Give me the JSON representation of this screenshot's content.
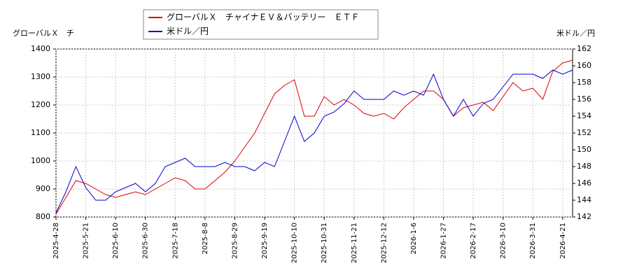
{
  "chart_data": {
    "type": "line",
    "y_label": "グローバルＸ　チ",
    "y2_label": "米ドル／円",
    "categories": [
      "2025-4-28",
      null,
      null,
      "2025-5-21",
      null,
      null,
      "2025-6-10",
      null,
      null,
      "2025-6-30",
      null,
      null,
      "2025-7-18",
      null,
      null,
      "2025-8-8",
      null,
      null,
      "2025-8-29",
      null,
      null,
      "2025-9-19",
      null,
      null,
      "2025-10-10",
      null,
      null,
      "2025-10-31",
      null,
      null,
      "2025-11-21",
      null,
      null,
      "2025-12-12",
      null,
      null,
      "2026-1-6",
      null,
      null,
      "2026-1-27",
      null,
      null,
      "2026-2-17",
      null,
      null,
      "2026-3-10",
      null,
      null,
      "2026-3-31",
      null,
      null,
      "2026-4-21",
      null
    ],
    "series": [
      {
        "name": "グローバルＸ　チャイナＥＶ＆バッテリー　ＥＴＦ",
        "color": "#dd0000",
        "values": [
          810,
          870,
          930,
          920,
          900,
          880,
          870,
          880,
          890,
          880,
          900,
          920,
          940,
          930,
          900,
          900,
          930,
          960,
          1000,
          1050,
          1100,
          1170,
          1240,
          1270,
          1290,
          1160,
          1160,
          1230,
          1200,
          1220,
          1200,
          1170,
          1160,
          1170,
          1150,
          1190,
          1220,
          1250,
          1250,
          1220,
          1160,
          1190,
          1200,
          1210,
          1180,
          1230,
          1280,
          1250,
          1260,
          1220,
          1320,
          1350,
          1360
        ]
      },
      {
        "name": "米ドル／円",
        "color": "#0000cc",
        "axis": "y2",
        "values": [
          142.5,
          145,
          148,
          145.5,
          144,
          144,
          145,
          145.5,
          146,
          145,
          146,
          148,
          148.5,
          149,
          148,
          148,
          148,
          148.5,
          148,
          148,
          147.5,
          148.5,
          148,
          151,
          154,
          151,
          152,
          154,
          154.5,
          155.5,
          157,
          156,
          156,
          156,
          157,
          156.5,
          157,
          156.5,
          159,
          156,
          154,
          156,
          154,
          155.5,
          156,
          157.5,
          159,
          159,
          159,
          158.5,
          159.5,
          159,
          159.5
        ]
      }
    ],
    "ylim": [
      800,
      1400
    ],
    "yticks": [
      800,
      900,
      1000,
      1100,
      1200,
      1300,
      1400
    ],
    "y2lim": [
      142,
      162
    ],
    "y2ticks": [
      142,
      144,
      146,
      148,
      150,
      152,
      154,
      156,
      158,
      160,
      162
    ],
    "grid": true
  }
}
